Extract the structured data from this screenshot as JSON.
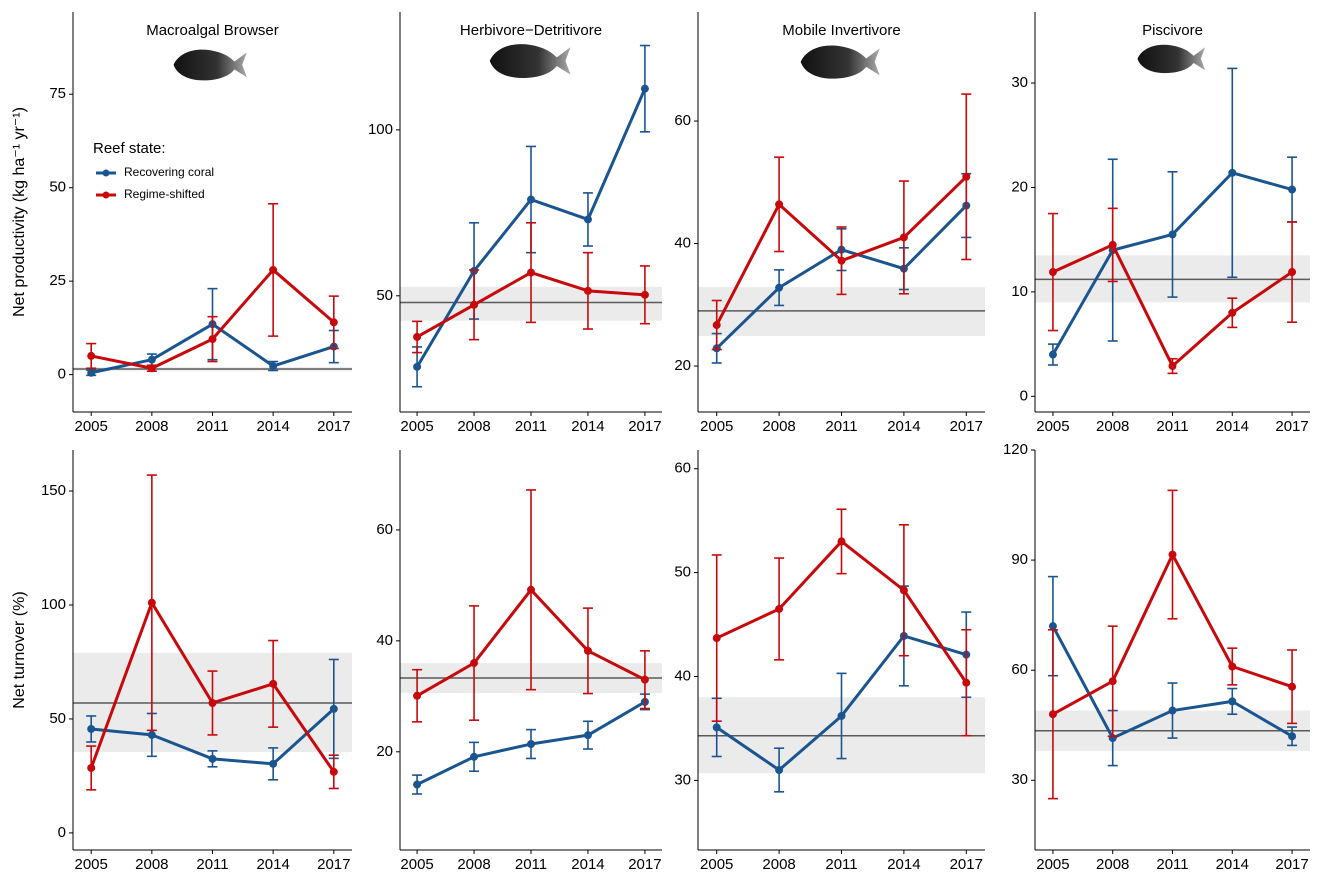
{
  "chart_data": [
    {
      "type": "line",
      "title": "Macroalgal Browser",
      "y_label": "Net productivity (kg ha⁻¹ yr⁻¹)",
      "legend_title": "Reef state:",
      "legend": "top-left",
      "x": [
        2005,
        2008,
        2011,
        2014,
        2017
      ],
      "xticks": [
        2005,
        2008,
        2011,
        2014,
        2017
      ],
      "xlim": [
        2004.1,
        2017.9
      ],
      "ylim": [
        -10,
        97
      ],
      "yticks": [
        0,
        25,
        50,
        75
      ],
      "ref_line": 1.5,
      "ref_band": [
        1,
        2
      ],
      "series": [
        {
          "name": "Recovering coral",
          "color": "#1a5590",
          "values": [
            0.5,
            4,
            13.5,
            2.3,
            7.5
          ],
          "errors": [
            0.7,
            1.5,
            9.5,
            1.2,
            4.3
          ]
        },
        {
          "name": "Regime-shifted",
          "color": "#c8090c",
          "values": [
            5,
            1.7,
            9.5,
            28,
            14
          ],
          "errors": [
            3.3,
            0.8,
            6,
            17.7,
            7
          ]
        }
      ]
    },
    {
      "type": "line",
      "title": "Herbivore−Detritivore",
      "x": [
        2005,
        2008,
        2011,
        2014,
        2017
      ],
      "xticks": [
        2005,
        2008,
        2011,
        2014,
        2017
      ],
      "xlim": [
        2004.1,
        2017.9
      ],
      "ylim": [
        15,
        135.5
      ],
      "yticks": [
        50,
        100
      ],
      "ref_line": 48,
      "ref_band": [
        42.5,
        52.7
      ],
      "series": [
        {
          "color": "#1a5590",
          "values": [
            28.6,
            57.5,
            79,
            73,
            112.4
          ],
          "errors": [
            6,
            14.5,
            16,
            8,
            13
          ]
        },
        {
          "color": "#c8090c",
          "values": [
            37.6,
            47.3,
            57,
            51.5,
            50.3
          ],
          "errors": [
            4.7,
            10.5,
            15,
            11.5,
            8.7
          ]
        }
      ]
    },
    {
      "type": "line",
      "title": "Mobile Invertivore",
      "x": [
        2005,
        2008,
        2011,
        2014,
        2017
      ],
      "xticks": [
        2005,
        2008,
        2011,
        2014,
        2017
      ],
      "xlim": [
        2004.1,
        2017.9
      ],
      "ylim": [
        12.5,
        77.8
      ],
      "yticks": [
        20,
        40,
        60
      ],
      "ref_line": 29,
      "ref_band": [
        24.9,
        32.9
      ],
      "series": [
        {
          "color": "#1a5590",
          "values": [
            22.9,
            32.8,
            39,
            35.9,
            46.2
          ],
          "errors": [
            2.4,
            2.9,
            3.4,
            3.4,
            5.2
          ]
        },
        {
          "color": "#c8090c",
          "values": [
            26.7,
            46.4,
            37.2,
            41,
            50.9
          ],
          "errors": [
            4,
            7.7,
            5.5,
            9.2,
            13.5
          ]
        }
      ]
    },
    {
      "type": "line",
      "title": "Piscivore",
      "x": [
        2005,
        2008,
        2011,
        2014,
        2017
      ],
      "xticks": [
        2005,
        2008,
        2011,
        2014,
        2017
      ],
      "xlim": [
        2004.1,
        2017.9
      ],
      "ylim": [
        -1.5,
        36.8
      ],
      "yticks": [
        0,
        10,
        20,
        30
      ],
      "ref_line": 11.2,
      "ref_band": [
        9,
        13.5
      ],
      "series": [
        {
          "color": "#1a5590",
          "values": [
            4,
            14,
            15.5,
            21.4,
            19.8
          ],
          "errors": [
            1,
            8.7,
            6,
            10,
            3.1
          ]
        },
        {
          "color": "#c8090c",
          "values": [
            11.9,
            14.5,
            2.9,
            8,
            11.9
          ],
          "errors": [
            5.6,
            3.5,
            0.7,
            1.4,
            4.8
          ]
        }
      ]
    },
    {
      "type": "line",
      "y_label": "Net turnover (%)",
      "x": [
        2005,
        2008,
        2011,
        2014,
        2017
      ],
      "xticks": [
        2005,
        2008,
        2011,
        2014,
        2017
      ],
      "xlim": [
        2004.1,
        2017.9
      ],
      "ylim": [
        -7.5,
        168
      ],
      "yticks": [
        0,
        50,
        100,
        150
      ],
      "ref_line": 57,
      "ref_band": [
        35.5,
        79
      ],
      "series": [
        {
          "color": "#1a5590",
          "values": [
            45.6,
            43,
            32.5,
            30.3,
            54.4
          ],
          "errors": [
            5.7,
            9.4,
            3.5,
            7,
            21.7
          ]
        },
        {
          "color": "#c8090c",
          "values": [
            28.5,
            101,
            57,
            65.4,
            26.8
          ],
          "errors": [
            9.6,
            56,
            14,
            19,
            7.3
          ]
        }
      ]
    },
    {
      "type": "line",
      "x": [
        2005,
        2008,
        2011,
        2014,
        2017
      ],
      "xticks": [
        2005,
        2008,
        2011,
        2014,
        2017
      ],
      "xlim": [
        2004.1,
        2017.9
      ],
      "ylim": [
        2.3,
        74.4
      ],
      "yticks": [
        20,
        40,
        60
      ],
      "ref_line": 33.3,
      "ref_band": [
        30.6,
        36
      ],
      "series": [
        {
          "color": "#1a5590",
          "values": [
            14.1,
            19.1,
            21.4,
            23,
            29
          ],
          "errors": [
            1.7,
            2.6,
            2.6,
            2.5,
            1.4
          ]
        },
        {
          "color": "#c8090c",
          "values": [
            30.1,
            36,
            49.2,
            38.2,
            33
          ],
          "errors": [
            4.7,
            10.3,
            18,
            7.7,
            5.2
          ]
        }
      ]
    },
    {
      "type": "line",
      "x": [
        2005,
        2008,
        2011,
        2014,
        2017
      ],
      "xticks": [
        2005,
        2008,
        2011,
        2014,
        2017
      ],
      "xlim": [
        2004.1,
        2017.9
      ],
      "ylim": [
        23.3,
        61.8
      ],
      "yticks": [
        30,
        40,
        50,
        60
      ],
      "ref_line": 34.3,
      "ref_band": [
        30.7,
        38
      ],
      "series": [
        {
          "color": "#1a5590",
          "values": [
            35.1,
            31,
            36.2,
            43.9,
            42.1
          ],
          "errors": [
            2.8,
            2.1,
            4.1,
            4.8,
            4.1
          ]
        },
        {
          "color": "#c8090c",
          "values": [
            43.7,
            46.5,
            53,
            48.3,
            39.4
          ],
          "errors": [
            8,
            4.9,
            3.1,
            6.3,
            5.1
          ]
        }
      ]
    },
    {
      "type": "line",
      "x": [
        2005,
        2008,
        2011,
        2014,
        2017
      ],
      "xticks": [
        2005,
        2008,
        2011,
        2014,
        2017
      ],
      "xlim": [
        2004.1,
        2017.9
      ],
      "ylim": [
        11,
        120
      ],
      "yticks": [
        30,
        60,
        90,
        120
      ],
      "ref_line": 43.5,
      "ref_band": [
        38,
        49
      ],
      "series": [
        {
          "color": "#1a5590",
          "values": [
            72,
            41.5,
            49,
            51.5,
            42
          ],
          "errors": [
            13.5,
            7.5,
            7.5,
            3.5,
            2.5
          ]
        },
        {
          "color": "#c8090c",
          "values": [
            48,
            57,
            91.5,
            61,
            55.5
          ],
          "errors": [
            23,
            15,
            17.5,
            5,
            10
          ]
        }
      ]
    }
  ]
}
